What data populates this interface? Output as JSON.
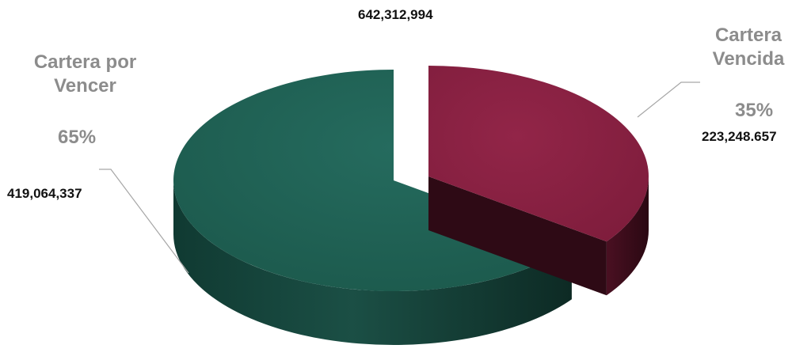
{
  "chart_data": {
    "type": "pie",
    "style": "3d-exploded",
    "total_label": "642,312,994",
    "slices": [
      {
        "name_line1": "Cartera",
        "name_line2": "Vencida",
        "percent_label": "35%",
        "value_label": "223,248.657",
        "percent": 35,
        "color": "#8a2142",
        "side_color": "#3d0d1c"
      },
      {
        "name_line1": "Cartera por",
        "name_line2": "Vencer",
        "percent_label": "65%",
        "value_label": "419,064,337",
        "percent": 65,
        "color": "#1f5e52",
        "side_color": "#0f332b"
      }
    ]
  }
}
